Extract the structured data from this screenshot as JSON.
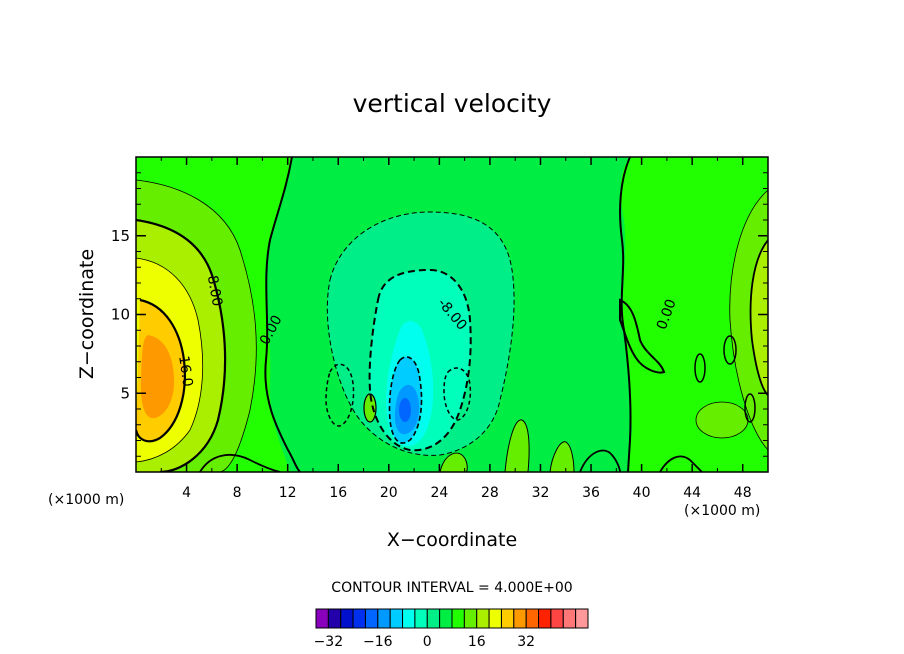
{
  "chart_data": {
    "type": "contour",
    "title": "vertical velocity",
    "xlabel": "X−coordinate",
    "ylabel": "Z−coordinate",
    "x_unit_left": "(×1000 m)",
    "x_unit_right": "(×1000 m)",
    "xlim": [
      0,
      50
    ],
    "ylim": [
      0,
      20
    ],
    "x_ticks": [
      4,
      8,
      12,
      16,
      20,
      24,
      28,
      32,
      36,
      40,
      44,
      48
    ],
    "y_ticks": [
      5,
      10,
      15
    ],
    "contour_interval_text": "CONTOUR INTERVAL = 4.000E+00",
    "contour_labels": [
      {
        "text": "8.00",
        "x": 6.2,
        "y": 11.5,
        "angle": 80
      },
      {
        "text": "16.0",
        "x": 3.9,
        "y": 6.4,
        "angle": 82
      },
      {
        "text": "0.00",
        "x": 10.7,
        "y": 9.0,
        "angle": -62
      },
      {
        "text": "-8.00",
        "x": 25.0,
        "y": 10.0,
        "angle": 50
      },
      {
        "text": "0.00",
        "x": 42.0,
        "y": 10.0,
        "angle": -70
      }
    ],
    "legend": {
      "levels": [
        -32,
        -28,
        -24,
        -20,
        -16,
        -12,
        -8,
        -4,
        0,
        4,
        8,
        12,
        16,
        20,
        24,
        28,
        32,
        36
      ],
      "tick_labels": [
        {
          "text": "−32",
          "level": -32
        },
        {
          "text": "−16",
          "level": -16
        },
        {
          "text": "0",
          "level": 0
        },
        {
          "text": "16",
          "level": 16
        },
        {
          "text": "32",
          "level": 32
        }
      ],
      "colors": [
        "#8800bb",
        "#2200aa",
        "#0010cc",
        "#0030ee",
        "#0066ff",
        "#0099ff",
        "#00ccff",
        "#00ffee",
        "#00ffbb",
        "#00ee88",
        "#00ee44",
        "#22ff00",
        "#66ee00",
        "#aaee00",
        "#eeff00",
        "#ffcc00",
        "#ff9900",
        "#ff6600",
        "#ff2200",
        "#ff4444",
        "#ff7777",
        "#ff9999"
      ]
    }
  }
}
